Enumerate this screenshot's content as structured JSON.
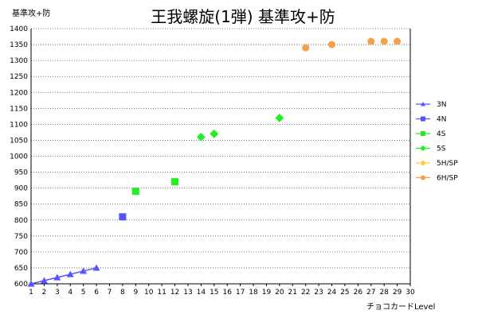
{
  "chart_data": {
    "type": "scatter",
    "title": "王我螺旋(1弾) 基準攻+防",
    "ylabel": "基準攻+防",
    "xlabel": "チョコカードLevel",
    "xlim": [
      1,
      30
    ],
    "ylim": [
      600,
      1400
    ],
    "x_ticks": [
      1,
      2,
      3,
      4,
      5,
      6,
      7,
      8,
      9,
      10,
      11,
      12,
      13,
      14,
      15,
      16,
      17,
      18,
      19,
      20,
      21,
      22,
      23,
      24,
      25,
      26,
      27,
      28,
      29,
      30
    ],
    "y_ticks": [
      600,
      650,
      700,
      750,
      800,
      850,
      900,
      950,
      1000,
      1050,
      1100,
      1150,
      1200,
      1250,
      1300,
      1350,
      1400
    ],
    "grid": "horizontal-dotted",
    "legend": "right",
    "series": [
      {
        "name": "3N",
        "marker": "triangle",
        "color": "#5555ff",
        "line": true,
        "points": [
          [
            1,
            600
          ],
          [
            2,
            610
          ],
          [
            3,
            620
          ],
          [
            4,
            630
          ],
          [
            5,
            640
          ],
          [
            6,
            650
          ]
        ]
      },
      {
        "name": "4N",
        "marker": "square",
        "color": "#5555ff",
        "line": false,
        "points": [
          [
            8,
            810
          ]
        ]
      },
      {
        "name": "4S",
        "marker": "square",
        "color": "#22ee22",
        "line": false,
        "points": [
          [
            9,
            890
          ],
          [
            12,
            920
          ]
        ]
      },
      {
        "name": "5S",
        "marker": "diamond",
        "color": "#22ee22",
        "line": false,
        "points": [
          [
            14,
            1060
          ],
          [
            15,
            1070
          ],
          [
            20,
            1120
          ]
        ]
      },
      {
        "name": "5H/SP",
        "marker": "diamond",
        "color": "#ffcc33",
        "line": false,
        "points": []
      },
      {
        "name": "6H/SP",
        "marker": "circle",
        "color": "#f5a04a",
        "line": false,
        "points": [
          [
            22,
            1340
          ],
          [
            24,
            1350
          ],
          [
            27,
            1360
          ],
          [
            28,
            1360
          ],
          [
            29,
            1360
          ]
        ]
      }
    ]
  }
}
